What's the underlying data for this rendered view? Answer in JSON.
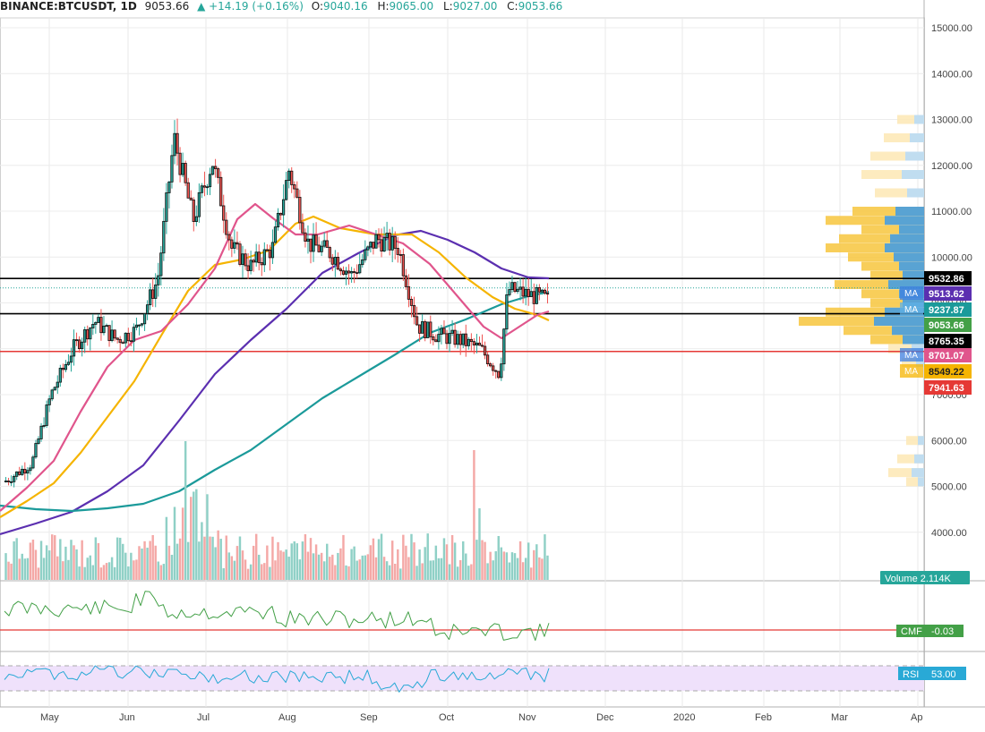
{
  "header": {
    "symbol": "BINANCE:BTCUSDT, 1D",
    "last": "9053.66",
    "change": "▲ +14.19 (+0.16%)",
    "open_label": "O:",
    "open": "9040.16",
    "high_label": "H:",
    "high": "9065.00",
    "low_label": "L:",
    "low": "9027.00",
    "close_label": "C:",
    "close": "9053.66"
  },
  "colors": {
    "up": "#26a69a",
    "down": "#ef5350",
    "ma_pink": "#e0558c",
    "ma_orange": "#f5b400",
    "ma_purple": "#5b2fb0",
    "ma_teal": "#1b9a9a",
    "cmf_line": "#43a047",
    "rsi_line": "#29a9d6",
    "rsi_band": "#efe1fb",
    "support_line": "#e53935",
    "level_line": "#000000"
  },
  "chart_data": [
    {
      "type": "candlestick",
      "title": "BINANCE:BTCUSDT, 1D",
      "xlabel": "",
      "ylabel": "",
      "x_ticks": [
        "May",
        "Jun",
        "Jul",
        "Aug",
        "Sep",
        "Oct",
        "Nov",
        "Dec",
        "2020",
        "Feb",
        "Mar",
        "Ap"
      ],
      "y_ticks": [
        "4000.00",
        "5000.00",
        "6000.00",
        "7000.00",
        "8000.00",
        "9000.00",
        "10000.00",
        "11000.00",
        "12000.00",
        "13000.00",
        "14000.00",
        "15000.00"
      ],
      "ylim": [
        3500,
        15000
      ],
      "series_close_approx": {
        "x": [
          "2019-04-25",
          "2019-05-05",
          "2019-05-12",
          "2019-05-20",
          "2019-05-28",
          "2019-06-05",
          "2019-06-12",
          "2019-06-20",
          "2019-06-26",
          "2019-07-03",
          "2019-07-10",
          "2019-07-17",
          "2019-07-24",
          "2019-08-01",
          "2019-08-07",
          "2019-08-14",
          "2019-08-22",
          "2019-08-30",
          "2019-09-08",
          "2019-09-16",
          "2019-09-23",
          "2019-09-30",
          "2019-10-08",
          "2019-10-16",
          "2019-10-23",
          "2019-10-26",
          "2019-11-01",
          "2019-11-08",
          "2019-11-10"
        ],
        "values": [
          5100,
          5500,
          7000,
          8000,
          8600,
          8200,
          8400,
          9500,
          12600,
          10800,
          12100,
          10200,
          9800,
          10200,
          11900,
          10300,
          10100,
          9600,
          10400,
          10200,
          8500,
          8300,
          8200,
          8000,
          7450,
          9300,
          9200,
          9100,
          9053.66
        ]
      },
      "overlays": [
        {
          "name": "MA",
          "value": "9513.62"
        },
        {
          "name": "MA",
          "value": "9237.87"
        },
        {
          "name": "MA",
          "value": "8701.07"
        },
        {
          "name": "MA",
          "value": "8549.22"
        }
      ],
      "price_labels": [
        "9532.86",
        "9513.62",
        "9237.87",
        "9053.66",
        "8765.35",
        "8701.07",
        "8549.22",
        "7941.63"
      ],
      "horizontal_levels": [
        9532.86,
        8765.35,
        7941.63
      ],
      "volume_label": "Volume",
      "volume_value": "2.114K"
    },
    {
      "type": "line",
      "title": "",
      "series": [
        {
          "name": "CMF",
          "value": "-0.03"
        }
      ]
    },
    {
      "type": "line",
      "title": "",
      "series": [
        {
          "name": "RSI",
          "value": "53.00"
        }
      ]
    }
  ]
}
